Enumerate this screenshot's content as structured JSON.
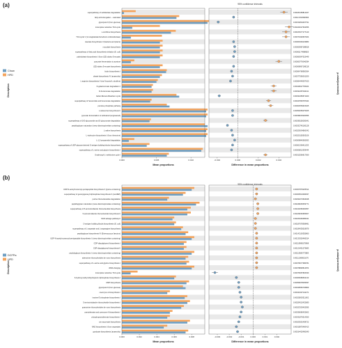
{
  "colors": {
    "blue": "#6e9ec2",
    "orange": "#f4a45d",
    "stripe": "#e9e9e9",
    "axis": "#555555"
  },
  "chart_data": [
    {
      "type": "bar",
      "panel_label": "(a)",
      "ci_label": "95% confidence intervals",
      "xlabel": "Mean proportions",
      "diff_xlabel": "Difference in mean proportions",
      "ylabel": "Description",
      "pval_label": "p-value(corrected)",
      "xlim": [
        0,
        0.012
      ],
      "xticks": [
        "0.000",
        "0.005",
        "0.010"
      ],
      "diff_xlim": [
        -0.0028,
        0.0052
      ],
      "diff_xticks": [
        "-0.002",
        "0.000",
        "0.002",
        "0.004"
      ],
      "series": [
        {
          "name": "Chow",
          "color": "#6e9ec2"
        },
        {
          "name": "HFD",
          "color": "#f4a45d"
        }
      ],
      "categories": [
        "superpathway of sulfolactate degradation",
        "fatty acid elongation -- saturated",
        "glycolysis III (from glucose)",
        "incomplete reductive TCA cycle",
        "L-ornithine biosynthesis",
        "TCA cycle V (2-oxoglutarate:ferredoxin oxidoreductase)",
        "stearate biosynthesis II (bacteria and plants)",
        "mycolate biosynthesis",
        "superpathway of fatty acid biosynthesis initiation (E. coli)",
        "palmitoleate biosynthesis I (from (5Z)-dodec-5-enoate)",
        "pyruvate fermentation to acetone",
        "(5Z)-dodec-5-enoate biosynthesis",
        "biotin biosynthesis I",
        "oleate biosynthesis IV (anaerobic)",
        "L-arginine biosynthesis II (via N-acetyl-L-citrulline)",
        "D-galacturonate degradation I",
        "D-fructuronate degradation",
        "Calvin-Benson-Bassham cycle",
        "superpathway of hexuronide and hexuronate degradation",
        "pentose phosphate pathway",
        "L-isoleucine biosynthesis II",
        "pyruvate fermentation to isobutanol (engineered)",
        "superpathway of β-D-glucuronide and D-glucuronate degradation",
        "peptidoglycan maturation (meso-diaminopimelate containing)",
        "L-valine biosynthesis",
        "L-isoleucine biosynthesis I (from threonine)",
        "L-1,2-propanediol degradation",
        "superpathway of UDP-glucose-derived O-antigen building blocks biosynthesis",
        "superpathway of L-serine and glycine biosynthesis I",
        "S-adenosyl-L-methionine cycle I"
      ],
      "group1": [
        0.0003,
        0.0079,
        0.0124,
        0.0015,
        0.0071,
        0.0013,
        0.0055,
        0.0055,
        0.0055,
        0.0055,
        0.0013,
        0.0055,
        0.0064,
        0.0055,
        0.005,
        0.0043,
        0.0043,
        0.0083,
        0.0041,
        0.0069,
        0.0122,
        0.0122,
        0.004,
        0.0124,
        0.0122,
        0.0122,
        0.001,
        0.0036,
        0.0115,
        0.0065
      ],
      "group2": [
        0.002,
        0.0083,
        0.0126,
        0.0055,
        0.0078,
        0.0058,
        0.0059,
        0.0059,
        0.0059,
        0.0059,
        0.0018,
        0.0059,
        0.0065,
        0.0058,
        0.0052,
        0.0045,
        0.0045,
        0.0079,
        0.0043,
        0.0065,
        0.0124,
        0.0124,
        0.0042,
        0.012,
        0.0124,
        0.0124,
        0.0018,
        0.004,
        0.0117,
        0.0068
      ],
      "diff": [
        0.0045,
        -0.0004,
        -0.0019,
        0.005,
        0.0047,
        0.0047,
        -0.0004,
        -0.0003,
        -0.0003,
        -0.0004,
        0.004,
        -0.0004,
        -0.0006,
        -0.0005,
        -0.0007,
        0.0035,
        0.0035,
        -0.0018,
        0.003,
        0.0032,
        -0.0005,
        -0.0005,
        0.0027,
        -0.001,
        -0.0006,
        -0.0005,
        -0.0003,
        -0.0005,
        -0.0006,
        0.0027
      ],
      "pvalues": [
        "0.00183165814327",
        "0.00117262982696",
        "0.00152804497791",
        "0.00224627364356",
        "0.00105477177140",
        "0.00373402607404",
        "0.00060309103883",
        "0.00060987188818",
        "0.00061174988825",
        "0.00066347015449",
        "0.00060776046394",
        "0.00069867198218",
        "0.00064768950364",
        "0.00077565001200",
        "0.00064449097420",
        "0.00049627765404",
        "0.00032457046211",
        "0.00032456571400",
        "0.00047806787944",
        "0.00002553015025",
        "0.00053056075305",
        "0.00038215020056",
        "0.00038150030641",
        "0.00032745100128",
        "0.00023634806342",
        "0.00020150563106",
        "0.00009840565053",
        "0.00001306411233",
        "0.00006812939444",
        "0.00012556617360"
      ]
    },
    {
      "type": "bar",
      "panel_label": "(b)",
      "ci_label": "95% confidence intervals",
      "xlabel": "Mean proportions",
      "diff_xlabel": "Difference in mean proportions",
      "ylabel": "Description",
      "pval_label": "p-value(corrected)",
      "xlim": [
        0,
        0.0095
      ],
      "xticks": [
        "0.000",
        "0.002",
        "0.004",
        "0.006",
        "0.008"
      ],
      "diff_xlim": [
        -0.0037,
        0.0032
      ],
      "diff_xticks": [
        "-0.003",
        "-0.002",
        "-0.001",
        "0.000",
        "0.001",
        "0.002"
      ],
      "series": [
        {
          "name": "DCFPa",
          "color": "#6e9ec2"
        },
        {
          "name": "HFD",
          "color": "#f4a45d"
        }
      ],
      "categories": [
        "UDP-N-acetylmuramoyl-pentapeptide biosynthesis II (lysine-containing)",
        "superpathway of geranylgeranyl diphosphate biosynthesis II (via MEP)",
        "purine ribonucleosides degradation",
        "peptidoglycan maturation (meso-diaminopimelate containing)",
        "superpathway of 5-aminoimidazole ribonucleotide biosynthesis",
        "5-aminoimidazole ribonucleotide biosynthesis II",
        "NAD salvage pathway II",
        "O-antigen building blocks biosynthesis (E. coli)",
        "superpathway of L-aspartate and L-asparagine biosynthesis",
        "peptidoglycan biosynthesis IV (Enterococcus faecium)",
        "UDP-N-acetylmuramoyl-pentapeptide biosynthesis I (meso-diaminopimelate containing)",
        "CDP-diacylglycerol biosynthesis I",
        "CDP-diacylglycerol biosynthesis II",
        "peptidoglycan biosynthesis I (meso-diaminopimelate containing)",
        "adenosine ribonucleotides de novo biosynthesis",
        "superpathway of L-serine and glycine biosynthesis I",
        "tRNA charging",
        "incomplete reductive TCA cycle",
        "6-hydroxymethyl-dihydropterin diphosphate biosynthesis I",
        "UMP biosynthesis",
        "glycolysis III (from glucose)",
        "coenzyme A biosynthesis I",
        "inosine-5'-phosphate biosynthesis I",
        "5-aminoimidazole ribonucleotide biosynthesis I",
        "guanosine ribonucleotides de novo biosynthesis",
        "pantothenate and coenzyme A biosynthesis I",
        "phosphopantothenate biosynthesis I",
        "cis-vaccenate biosynthesis",
        "NAD biosynthesis I (from aspartate)",
        "gondoate biosynthesis (anaerobic)"
      ],
      "group1": [
        0.008,
        0.007,
        0.0052,
        0.0085,
        0.0075,
        0.0075,
        0.0058,
        0.006,
        0.0068,
        0.0073,
        0.008,
        0.0071,
        0.0071,
        0.008,
        0.0073,
        0.0074,
        0.008,
        0.001,
        0.006,
        0.0074,
        0.0073,
        0.0052,
        0.0072,
        0.0075,
        0.0068,
        0.0055,
        0.0052,
        0.0075,
        0.0048,
        0.0073
      ],
      "group2": [
        0.0083,
        0.0073,
        0.0054,
        0.0089,
        0.0079,
        0.0079,
        0.006,
        0.0062,
        0.007,
        0.0076,
        0.0083,
        0.0074,
        0.0074,
        0.0083,
        0.0076,
        0.0077,
        0.0083,
        0.0018,
        0.0062,
        0.0077,
        0.007,
        0.0055,
        0.0075,
        0.0078,
        0.0071,
        0.0058,
        0.0055,
        0.0078,
        0.0052,
        0.0076
      ],
      "diff": [
        0.0003,
        0.0003,
        0.0002,
        0.0004,
        0.0004,
        0.0004,
        0.0002,
        0.0002,
        0.0002,
        0.0003,
        0.0003,
        0.0003,
        0.0003,
        0.0003,
        0.0003,
        0.0003,
        0.0003,
        -0.0032,
        -0.0014,
        -0.0012,
        -0.0012,
        -0.0011,
        -0.001,
        -0.001,
        -0.0009,
        -0.001,
        -0.0011,
        -0.0012,
        -0.0014,
        -0.0013
      ],
      "pvalues": [
        "0.00307876025514",
        "0.00360513096937",
        "0.00293273364648",
        "0.00248245053771",
        "0.00242083300957",
        "0.00228260956607",
        "0.00226436486341",
        "0.00187678368481",
        "0.00184935018879",
        "0.00143100355860",
        "0.00130326466514",
        "0.00119998179968",
        "0.00120451279683",
        "0.00113686773883",
        "0.00111008021070",
        "0.00076677386781",
        "0.00078848512874",
        "0.00078457826030",
        "0.00066689502133",
        "0.00059678035097",
        "0.00049560736809",
        "0.00042307142271",
        "0.00025803311602",
        "0.00024510432680",
        "0.00023303402595",
        "0.00036080432602",
        "0.00031876014360",
        "0.00023501438722",
        "0.00015875400413",
        "0.00014420490040"
      ]
    }
  ]
}
